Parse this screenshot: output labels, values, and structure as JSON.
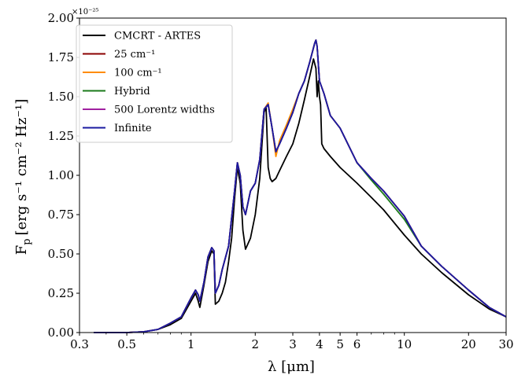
{
  "chart_data": {
    "type": "line",
    "xlabel": "λ [μm]",
    "ylabel": "F",
    "ylabel_subscript": "p",
    "ylabel_units": "[erg s⁻¹ cm⁻² Hz⁻¹]",
    "y_multiplier": "×10⁻²⁵",
    "xscale": "log",
    "xlim": [
      0.3,
      30
    ],
    "ylim": [
      0.0,
      2.0
    ],
    "x_ticks": [
      0.3,
      0.5,
      1,
      2,
      3,
      4,
      5,
      6,
      10,
      20,
      30
    ],
    "x_tick_labels": [
      "0.3",
      "0.5",
      "1",
      "2",
      "3",
      "4",
      "5",
      "6",
      "10",
      "20",
      "30"
    ],
    "y_ticks": [
      0.0,
      0.25,
      0.5,
      0.75,
      1.0,
      1.25,
      1.5,
      1.75,
      2.0
    ],
    "y_tick_labels": [
      "0.00",
      "0.25",
      "0.50",
      "0.75",
      "1.00",
      "1.25",
      "1.50",
      "1.75",
      "2.00"
    ],
    "grid": false,
    "legend_position": "top-left",
    "series": [
      {
        "name": "CMCRT - ARTES",
        "color": "#000000",
        "x": [
          0.35,
          0.5,
          0.6,
          0.7,
          0.8,
          0.9,
          1.0,
          1.05,
          1.08,
          1.1,
          1.15,
          1.2,
          1.25,
          1.28,
          1.3,
          1.35,
          1.4,
          1.45,
          1.5,
          1.55,
          1.6,
          1.65,
          1.7,
          1.75,
          1.8,
          1.9,
          2.0,
          2.1,
          2.2,
          2.25,
          2.3,
          2.35,
          2.4,
          2.5,
          2.6,
          2.8,
          3.0,
          3.2,
          3.4,
          3.6,
          3.75,
          3.85,
          3.9,
          3.95,
          4.0,
          4.05,
          4.1,
          4.2,
          4.5,
          5.0,
          6.0,
          7.0,
          8.0,
          10.0,
          12.0,
          15.0,
          20.0,
          25.0,
          30.0
        ],
        "values": [
          0.0,
          0.0,
          0.005,
          0.02,
          0.05,
          0.09,
          0.2,
          0.25,
          0.2,
          0.16,
          0.3,
          0.45,
          0.52,
          0.5,
          0.18,
          0.2,
          0.25,
          0.32,
          0.45,
          0.6,
          0.85,
          1.05,
          0.95,
          0.65,
          0.53,
          0.6,
          0.75,
          0.98,
          1.4,
          1.43,
          1.05,
          0.98,
          0.96,
          0.98,
          1.03,
          1.12,
          1.2,
          1.33,
          1.48,
          1.63,
          1.74,
          1.68,
          1.5,
          1.6,
          1.5,
          1.45,
          1.2,
          1.17,
          1.12,
          1.05,
          0.95,
          0.86,
          0.78,
          0.62,
          0.5,
          0.38,
          0.24,
          0.15,
          0.1
        ]
      },
      {
        "name": "25 cm⁻¹",
        "color": "#8b0000",
        "x": [
          0.35,
          0.5,
          0.6,
          0.7,
          0.8,
          0.9,
          1.0,
          1.05,
          1.08,
          1.1,
          1.15,
          1.2,
          1.25,
          1.28,
          1.3,
          1.35,
          1.4,
          1.5,
          1.6,
          1.65,
          1.7,
          1.75,
          1.8,
          1.9,
          2.0,
          2.1,
          2.2,
          2.3,
          2.4,
          2.5,
          2.6,
          2.8,
          3.0,
          3.2,
          3.4,
          3.6,
          3.8,
          3.85,
          3.9,
          4.0,
          4.2,
          4.5,
          5.0,
          6.0,
          7.0,
          8.0,
          10.0,
          12.0,
          15.0,
          20.0,
          25.0,
          30.0
        ],
        "values": [
          0.0,
          0.0,
          0.005,
          0.02,
          0.06,
          0.1,
          0.22,
          0.27,
          0.24,
          0.2,
          0.32,
          0.48,
          0.54,
          0.52,
          0.25,
          0.3,
          0.4,
          0.55,
          0.9,
          1.08,
          1.0,
          0.8,
          0.75,
          0.9,
          0.95,
          1.1,
          1.42,
          1.45,
          1.3,
          1.15,
          1.2,
          1.3,
          1.4,
          1.52,
          1.6,
          1.72,
          1.84,
          1.86,
          1.82,
          1.6,
          1.52,
          1.38,
          1.3,
          1.08,
          0.98,
          0.9,
          0.74,
          0.55,
          0.42,
          0.27,
          0.16,
          0.1
        ]
      },
      {
        "name": "100 cm⁻¹",
        "color": "#ff8c00",
        "x": [
          0.35,
          0.5,
          0.6,
          0.7,
          0.8,
          0.9,
          1.0,
          1.05,
          1.08,
          1.1,
          1.15,
          1.2,
          1.25,
          1.28,
          1.3,
          1.35,
          1.4,
          1.5,
          1.6,
          1.65,
          1.7,
          1.75,
          1.8,
          1.9,
          2.0,
          2.1,
          2.2,
          2.3,
          2.4,
          2.5,
          2.6,
          2.8,
          3.0,
          3.2,
          3.4,
          3.6,
          3.8,
          3.85,
          3.9,
          4.0,
          4.2,
          4.5,
          5.0,
          6.0,
          7.0,
          8.0,
          10.0,
          12.0,
          15.0,
          20.0,
          25.0,
          30.0
        ],
        "values": [
          0.0,
          0.0,
          0.005,
          0.02,
          0.06,
          0.1,
          0.22,
          0.27,
          0.24,
          0.2,
          0.32,
          0.48,
          0.54,
          0.52,
          0.25,
          0.3,
          0.4,
          0.55,
          0.9,
          1.08,
          1.0,
          0.8,
          0.75,
          0.9,
          0.95,
          1.1,
          1.42,
          1.46,
          1.3,
          1.12,
          1.22,
          1.32,
          1.42,
          1.52,
          1.6,
          1.72,
          1.84,
          1.86,
          1.82,
          1.6,
          1.52,
          1.38,
          1.3,
          1.08,
          0.98,
          0.9,
          0.74,
          0.55,
          0.42,
          0.27,
          0.16,
          0.1
        ]
      },
      {
        "name": "Hybrid",
        "color": "#1a7a1a",
        "x": [
          0.35,
          0.5,
          0.6,
          0.7,
          0.8,
          0.9,
          1.0,
          1.05,
          1.08,
          1.1,
          1.15,
          1.2,
          1.25,
          1.28,
          1.3,
          1.35,
          1.4,
          1.5,
          1.6,
          1.65,
          1.7,
          1.75,
          1.8,
          1.9,
          2.0,
          2.1,
          2.2,
          2.3,
          2.4,
          2.5,
          2.6,
          2.8,
          3.0,
          3.2,
          3.4,
          3.6,
          3.8,
          3.85,
          3.9,
          4.0,
          4.2,
          4.5,
          5.0,
          6.0,
          7.0,
          8.0,
          10.0,
          12.0,
          15.0,
          20.0,
          25.0,
          30.0
        ],
        "values": [
          0.0,
          0.0,
          0.005,
          0.02,
          0.06,
          0.1,
          0.22,
          0.27,
          0.24,
          0.2,
          0.32,
          0.48,
          0.54,
          0.52,
          0.25,
          0.3,
          0.4,
          0.55,
          0.9,
          1.08,
          1.0,
          0.8,
          0.75,
          0.9,
          0.95,
          1.1,
          1.42,
          1.45,
          1.3,
          1.15,
          1.2,
          1.3,
          1.4,
          1.52,
          1.6,
          1.72,
          1.84,
          1.86,
          1.82,
          1.6,
          1.52,
          1.38,
          1.3,
          1.08,
          0.97,
          0.88,
          0.72,
          0.55,
          0.42,
          0.27,
          0.16,
          0.1
        ]
      },
      {
        "name": "500 Lorentz widths",
        "color": "#a020a0",
        "x": [
          0.35,
          0.5,
          0.6,
          0.7,
          0.8,
          0.9,
          1.0,
          1.05,
          1.08,
          1.1,
          1.15,
          1.2,
          1.25,
          1.28,
          1.3,
          1.35,
          1.4,
          1.5,
          1.6,
          1.65,
          1.7,
          1.75,
          1.8,
          1.9,
          2.0,
          2.1,
          2.2,
          2.3,
          2.4,
          2.5,
          2.6,
          2.8,
          3.0,
          3.2,
          3.4,
          3.6,
          3.8,
          3.85,
          3.9,
          4.0,
          4.2,
          4.5,
          5.0,
          6.0,
          7.0,
          8.0,
          10.0,
          12.0,
          15.0,
          20.0,
          25.0,
          30.0
        ],
        "values": [
          0.0,
          0.0,
          0.005,
          0.02,
          0.06,
          0.1,
          0.22,
          0.27,
          0.24,
          0.2,
          0.32,
          0.48,
          0.54,
          0.52,
          0.25,
          0.3,
          0.4,
          0.55,
          0.9,
          1.08,
          1.0,
          0.8,
          0.75,
          0.9,
          0.95,
          1.1,
          1.42,
          1.45,
          1.3,
          1.15,
          1.2,
          1.3,
          1.4,
          1.52,
          1.6,
          1.72,
          1.84,
          1.86,
          1.82,
          1.6,
          1.52,
          1.38,
          1.3,
          1.08,
          0.98,
          0.9,
          0.74,
          0.55,
          0.42,
          0.27,
          0.16,
          0.1
        ]
      },
      {
        "name": "Infinite",
        "color": "#1a1aa0",
        "x": [
          0.35,
          0.5,
          0.6,
          0.7,
          0.8,
          0.9,
          1.0,
          1.05,
          1.08,
          1.1,
          1.15,
          1.2,
          1.25,
          1.28,
          1.3,
          1.35,
          1.4,
          1.5,
          1.6,
          1.65,
          1.7,
          1.75,
          1.8,
          1.9,
          2.0,
          2.1,
          2.2,
          2.3,
          2.4,
          2.5,
          2.6,
          2.8,
          3.0,
          3.2,
          3.4,
          3.6,
          3.8,
          3.85,
          3.9,
          4.0,
          4.2,
          4.5,
          5.0,
          6.0,
          7.0,
          8.0,
          10.0,
          12.0,
          15.0,
          20.0,
          25.0,
          30.0
        ],
        "values": [
          0.0,
          0.0,
          0.005,
          0.02,
          0.06,
          0.1,
          0.22,
          0.27,
          0.24,
          0.2,
          0.32,
          0.48,
          0.54,
          0.52,
          0.25,
          0.3,
          0.4,
          0.55,
          0.9,
          1.08,
          1.0,
          0.8,
          0.75,
          0.9,
          0.95,
          1.1,
          1.42,
          1.45,
          1.3,
          1.15,
          1.2,
          1.3,
          1.4,
          1.52,
          1.6,
          1.72,
          1.84,
          1.86,
          1.82,
          1.6,
          1.52,
          1.38,
          1.3,
          1.08,
          0.98,
          0.9,
          0.74,
          0.55,
          0.42,
          0.27,
          0.16,
          0.1
        ]
      }
    ]
  }
}
